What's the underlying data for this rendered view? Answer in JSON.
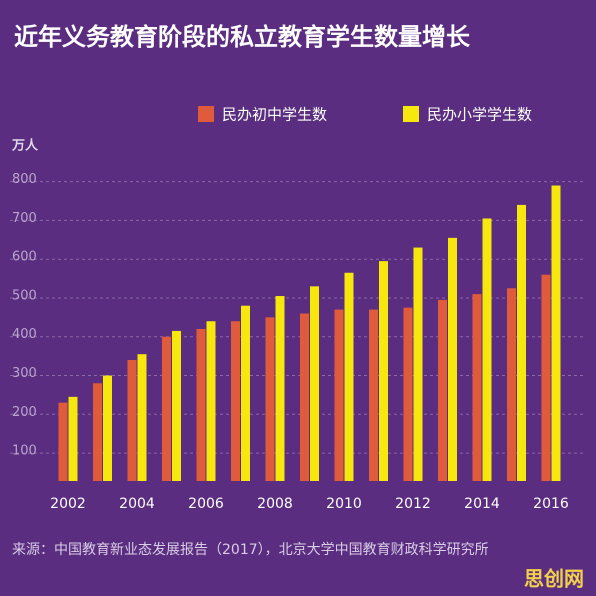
{
  "chart_data": {
    "type": "bar",
    "title": "近年义务教育阶段的私立教育学生数量增长",
    "y_unit": "万人",
    "categories": [
      "2002",
      null,
      "2004",
      null,
      "2006",
      null,
      "2008",
      null,
      "2010",
      null,
      "2012",
      null,
      "2014",
      null,
      "2016"
    ],
    "series": [
      {
        "name": "民办初中学生数",
        "color": "#e05a3c",
        "values": [
          230,
          280,
          340,
          400,
          420,
          440,
          450,
          460,
          470,
          470,
          475,
          495,
          510,
          525,
          560
        ]
      },
      {
        "name": "民办小学学生数",
        "color": "#f6e70c",
        "values": [
          245,
          300,
          355,
          415,
          440,
          480,
          505,
          530,
          565,
          595,
          630,
          655,
          705,
          740,
          790
        ]
      }
    ],
    "ylim": [
      28,
      830
    ],
    "yticks": [
      100,
      200,
      300,
      400,
      500,
      600,
      700,
      800
    ],
    "grid": true,
    "source": "来源：中国教育新业态发展报告（2017），北京大学中国教育财政科学研究所",
    "watermark": "思创网"
  }
}
